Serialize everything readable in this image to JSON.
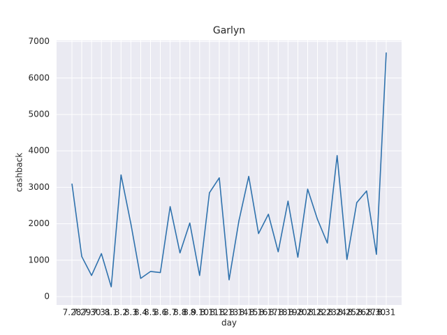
{
  "chart_data": {
    "type": "line",
    "title": "Garlyn",
    "x_label": "day",
    "y_label": "cashback",
    "categories": [
      "7.28",
      "7.29",
      "7.30",
      "7.31",
      "8.1",
      "8.2",
      "8.3",
      "8.4",
      "8.5",
      "8.6",
      "8.7",
      "8.8",
      "8.9",
      "8.10",
      "8.11",
      "8.12",
      "8.13",
      "8.14",
      "8.15",
      "8.16",
      "8.17",
      "8.18",
      "8.19",
      "8.20",
      "8.21",
      "8.22",
      "8.23",
      "8.24",
      "8.25",
      "8.26",
      "8.27",
      "8.30",
      "8.31"
    ],
    "series": [
      {
        "name": "cashback",
        "color": "#2f72ad",
        "values": [
          3100,
          1100,
          580,
          1180,
          270,
          3340,
          2000,
          500,
          690,
          660,
          2470,
          1200,
          2020,
          580,
          2850,
          3260,
          460,
          2080,
          3300,
          1730,
          2260,
          1230,
          2620,
          1080,
          2950,
          2120,
          1470,
          3870,
          1020,
          2580,
          2900,
          1160,
          6700
        ]
      }
    ],
    "ylim": [
      -230,
      7030
    ],
    "yticks": [
      0,
      1000,
      2000,
      3000,
      4000,
      5000,
      6000,
      7000
    ],
    "grid": true
  }
}
